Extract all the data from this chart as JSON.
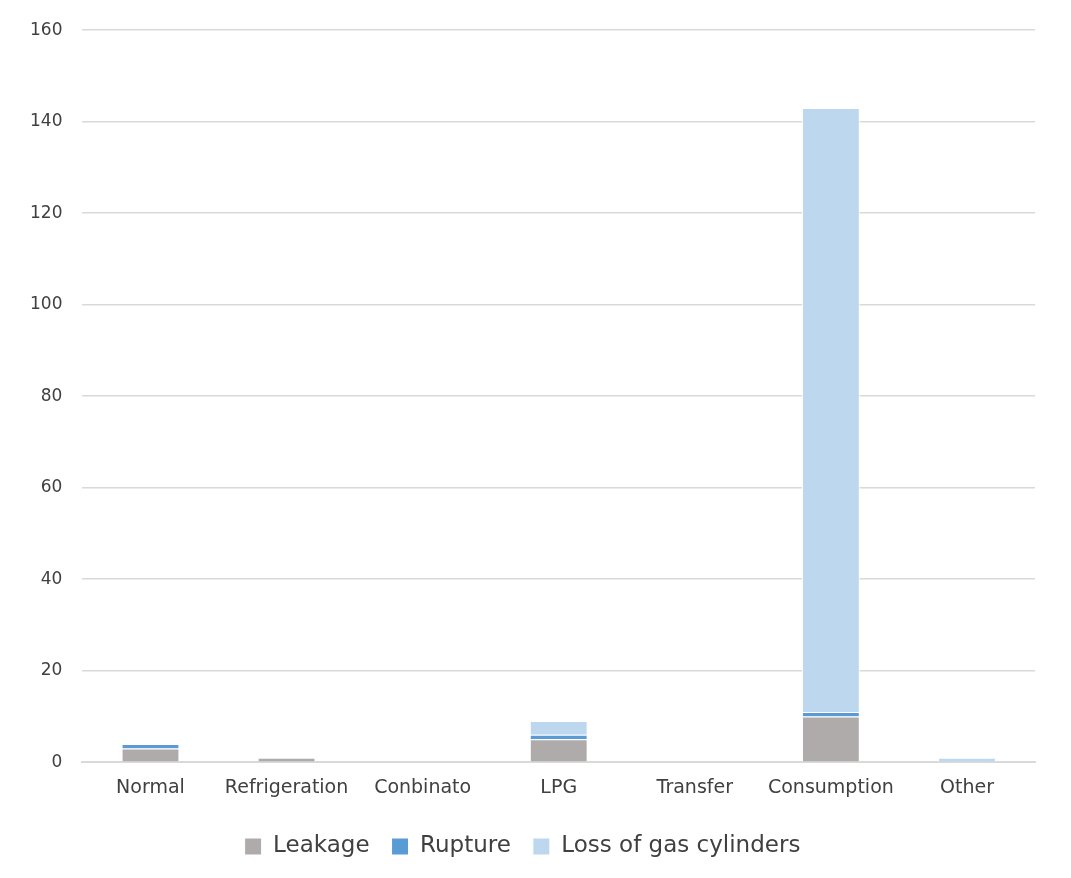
{
  "chart_data": {
    "type": "bar",
    "stacked": true,
    "categories": [
      "Normal",
      "Refrigeration",
      "Conbinato",
      "LPG",
      "Transfer",
      "Consumption",
      "Other"
    ],
    "series": [
      {
        "name": "Leakage",
        "color": "#afabab",
        "values": [
          3,
          1,
          0,
          5,
          0,
          10,
          0
        ]
      },
      {
        "name": "Rupture",
        "color": "#5b9bd5",
        "values": [
          1,
          0,
          0,
          1,
          0,
          1,
          0
        ]
      },
      {
        "name": "Loss of gas cylinders",
        "color": "#bdd7ee",
        "values": [
          0,
          0,
          0,
          3,
          0,
          132,
          1
        ]
      }
    ],
    "ylim": [
      0,
      160
    ],
    "yticks": [
      0,
      20,
      40,
      60,
      80,
      100,
      120,
      140,
      160
    ],
    "grid": "y",
    "legend": "bottom"
  }
}
